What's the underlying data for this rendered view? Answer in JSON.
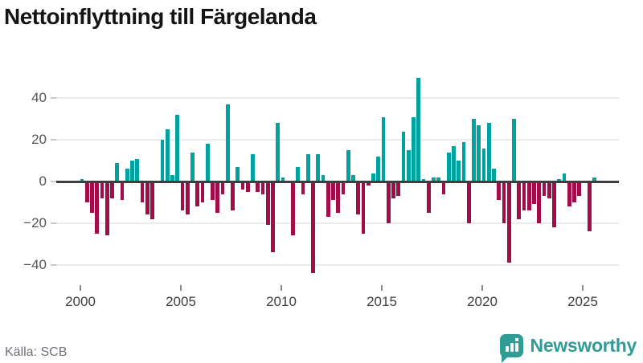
{
  "header": {
    "title": "Nettoinflyttning till Färgelanda"
  },
  "footer": {
    "source": "Källa: SCB",
    "brand": "Newsworthy"
  },
  "colors": {
    "positive": "#00A2A0",
    "negative": "#A10D49",
    "brand_teal": "#2F9D95",
    "zero_line": "#3D3D3D",
    "gridline": "#EBEBEB",
    "axis_text": "#555555"
  },
  "icons": {
    "brand_icon": "newsworthy-bar-chart-bubble"
  },
  "chart_data": {
    "type": "bar",
    "title": "Nettoinflyttning till Färgelanda",
    "xlabel": "",
    "ylabel": "",
    "ylim": [
      -50,
      55
    ],
    "grid": true,
    "legend": false,
    "source": "Källa: SCB",
    "positive_color": "#00A2A0",
    "negative_color": "#A10D49",
    "x_ticks": [
      "2000",
      "2005",
      "2010",
      "2015",
      "2020",
      "2025"
    ],
    "y_ticks": [
      {
        "label": "40",
        "value": 40
      },
      {
        "label": "20",
        "value": 20
      },
      {
        "label": "0",
        "value": 0
      },
      {
        "label": "−20",
        "value": -20
      },
      {
        "label": "−40",
        "value": -40
      }
    ],
    "categories": [
      "2000Q1",
      "2000Q2",
      "2000Q3",
      "2000Q4",
      "2001Q1",
      "2001Q2",
      "2001Q3",
      "2001Q4",
      "2002Q1",
      "2002Q2",
      "2002Q3",
      "2002Q4",
      "2003Q1",
      "2003Q2",
      "2003Q3",
      "2003Q4",
      "2004Q1",
      "2004Q2",
      "2004Q3",
      "2004Q4",
      "2005Q1",
      "2005Q2",
      "2005Q3",
      "2005Q4",
      "2006Q1",
      "2006Q2",
      "2006Q3",
      "2006Q4",
      "2007Q1",
      "2007Q2",
      "2007Q3",
      "2007Q4",
      "2008Q1",
      "2008Q2",
      "2008Q3",
      "2008Q4",
      "2009Q1",
      "2009Q2",
      "2009Q3",
      "2009Q4",
      "2010Q1",
      "2010Q2",
      "2010Q3",
      "2010Q4",
      "2011Q1",
      "2011Q2",
      "2011Q3",
      "2011Q4",
      "2012Q1",
      "2012Q2",
      "2012Q3",
      "2012Q4",
      "2013Q1",
      "2013Q2",
      "2013Q3",
      "2013Q4",
      "2014Q1",
      "2014Q2",
      "2014Q3",
      "2014Q4",
      "2015Q1",
      "2015Q2",
      "2015Q3",
      "2015Q4",
      "2016Q1",
      "2016Q2",
      "2016Q3",
      "2016Q4",
      "2017Q1",
      "2017Q2",
      "2017Q3",
      "2017Q4",
      "2018Q1",
      "2018Q2",
      "2018Q3",
      "2018Q4",
      "2019Q1",
      "2019Q2",
      "2019Q3",
      "2019Q4",
      "2020Q1",
      "2020Q2",
      "2020Q3",
      "2020Q4",
      "2021Q1",
      "2021Q2",
      "2021Q3",
      "2021Q4",
      "2022Q1",
      "2022Q2",
      "2022Q3",
      "2022Q4",
      "2023Q1",
      "2023Q2",
      "2023Q3",
      "2023Q4",
      "2024Q1",
      "2024Q2",
      "2024Q3",
      "2024Q4",
      "2025Q1",
      "2025Q2",
      "2025Q3"
    ],
    "values": [
      1,
      -10,
      -15,
      -25,
      -8,
      -26,
      -8,
      9,
      -9,
      6,
      10,
      11,
      -10,
      -16,
      -18,
      0,
      20,
      25,
      3,
      32,
      -14,
      -16,
      14,
      -12,
      -10,
      18,
      -9,
      -15,
      -6,
      37,
      -14,
      7,
      -4,
      -5,
      13,
      -5,
      -6,
      -21,
      -34,
      28,
      2,
      0,
      -26,
      7,
      -6,
      13,
      -44,
      13,
      3,
      -17,
      -9,
      -15,
      -6,
      15,
      3,
      -16,
      -25,
      -2,
      4,
      12,
      31,
      -20,
      -8,
      -7,
      24,
      15,
      31,
      50,
      1,
      -15,
      2,
      2,
      -6,
      14,
      17,
      10,
      19,
      -20,
      30,
      27,
      16,
      28,
      6,
      -9,
      -20,
      -39,
      30,
      -18,
      -14,
      -14,
      -11,
      -20,
      -7,
      -8,
      -22,
      1,
      4,
      -12,
      -10,
      -7,
      0,
      -24,
      2
    ]
  }
}
